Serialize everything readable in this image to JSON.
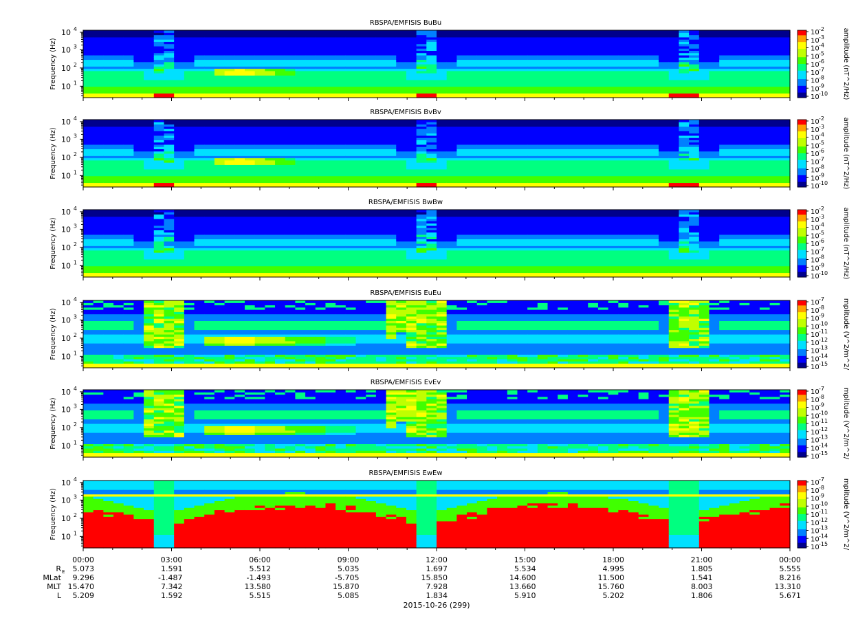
{
  "chart_data": [
    {
      "type": "heatmap",
      "title": "RBSPA/EMFISIS  BuBu",
      "ylabel": "Frequency (Hz)",
      "yscale": "log",
      "yticks": [
        "10",
        "10",
        "10",
        "10"
      ],
      "ytick_exponents": [
        "1",
        "2",
        "3",
        "4"
      ],
      "colorbar_label": "amplitude (nT^2/Hz)",
      "colorbar_ticks": [
        "-2",
        "-3",
        "-4",
        "-5",
        "-6",
        "-7",
        "-8",
        "-9",
        "-10"
      ],
      "zscale": "log",
      "zlim": [
        -10,
        -2
      ],
      "field": "magnetic"
    },
    {
      "type": "heatmap",
      "title": "RBSPA/EMFISIS  BvBv",
      "ylabel": "Frequency (Hz)",
      "yscale": "log",
      "yticks": [
        "10",
        "10",
        "10",
        "10"
      ],
      "ytick_exponents": [
        "1",
        "2",
        "3",
        "4"
      ],
      "colorbar_label": "amplitude (nT^2/Hz)",
      "colorbar_ticks": [
        "-2",
        "-3",
        "-4",
        "-5",
        "-6",
        "-7",
        "-8",
        "-9",
        "-10"
      ],
      "zscale": "log",
      "zlim": [
        -10,
        -2
      ],
      "field": "magnetic"
    },
    {
      "type": "heatmap",
      "title": "RBSPA/EMFISIS  BwBw",
      "ylabel": "Frequency (Hz)",
      "yscale": "log",
      "yticks": [
        "10",
        "10",
        "10",
        "10"
      ],
      "ytick_exponents": [
        "1",
        "2",
        "3",
        "4"
      ],
      "colorbar_label": "amplitude (nT^2/Hz)",
      "colorbar_ticks": [
        "-2",
        "-3",
        "-4",
        "-5",
        "-6",
        "-7",
        "-8",
        "-9",
        "-10"
      ],
      "zscale": "log",
      "zlim": [
        -10,
        -2
      ],
      "field": "magnetic_w"
    },
    {
      "type": "heatmap",
      "title": "RBSPA/EMFISIS  EuEu",
      "ylabel": "Frequency (Hz)",
      "yscale": "log",
      "yticks": [
        "10",
        "10",
        "10",
        "10"
      ],
      "ytick_exponents": [
        "1",
        "2",
        "3",
        "4"
      ],
      "colorbar_label": "mplitude (V^2/m^2/",
      "colorbar_ticks": [
        "-7",
        "-8",
        "-9",
        "-10",
        "-11",
        "-12",
        "-13",
        "-14",
        "-15"
      ],
      "zscale": "log",
      "zlim": [
        -15,
        -7
      ],
      "field": "electric"
    },
    {
      "type": "heatmap",
      "title": "RBSPA/EMFISIS  EvEv",
      "ylabel": "Frequency (Hz)",
      "yscale": "log",
      "yticks": [
        "10",
        "10",
        "10",
        "10"
      ],
      "ytick_exponents": [
        "1",
        "2",
        "3",
        "4"
      ],
      "colorbar_label": "mplitude (V^2/m^2/",
      "colorbar_ticks": [
        "-7",
        "-8",
        "-9",
        "-10",
        "-11",
        "-12",
        "-13",
        "-14",
        "-15"
      ],
      "zscale": "log",
      "zlim": [
        -15,
        -7
      ],
      "field": "electric"
    },
    {
      "type": "heatmap",
      "title": "RBSPA/EMFISIS  EwEw",
      "ylabel": "Frequency (Hz)",
      "yscale": "log",
      "yticks": [
        "10",
        "10",
        "10",
        "10"
      ],
      "ytick_exponents": [
        "1",
        "2",
        "3",
        "4"
      ],
      "colorbar_label": "mplitude (V^2/m^2/",
      "colorbar_ticks": [
        "-7",
        "-8",
        "-9",
        "-10",
        "-11",
        "-12",
        "-13",
        "-14",
        "-15"
      ],
      "zscale": "log",
      "zlim": [
        -15,
        -7
      ],
      "field": "electric_w"
    }
  ],
  "time_axis": {
    "ticks": [
      "00:00",
      "03:00",
      "06:00",
      "09:00",
      "12:00",
      "15:00",
      "18:00",
      "21:00",
      "00:00"
    ],
    "date_label": "2015-10-26 (299)"
  },
  "ephemeris": {
    "rows": [
      {
        "label": "R",
        "label_sub": "E",
        "values": [
          "5.073",
          "1.591",
          "5.512",
          "5.035",
          "1.697",
          "5.534",
          "4.995",
          "1.805",
          "5.555"
        ]
      },
      {
        "label": "MLat",
        "label_sub": "",
        "values": [
          "9.296",
          "-1.487",
          "-1.493",
          "-5.705",
          "15.850",
          "14.600",
          "11.500",
          "1.541",
          "8.216"
        ]
      },
      {
        "label": "MLT",
        "label_sub": "",
        "values": [
          "15.470",
          "7.342",
          "13.580",
          "15.870",
          "7.928",
          "13.660",
          "15.760",
          "8.003",
          "13.310"
        ]
      },
      {
        "label": "L",
        "label_sub": "",
        "values": [
          "5.209",
          "1.592",
          "5.515",
          "5.085",
          "1.834",
          "5.910",
          "5.202",
          "1.806",
          "5.671"
        ]
      }
    ]
  },
  "colors": {
    "background": "#ffffff",
    "axis": "#000000",
    "colormap": [
      "#00008c",
      "#0000ff",
      "#0080ff",
      "#00e0ff",
      "#00ff80",
      "#40ff00",
      "#c0ff00",
      "#ffff00",
      "#ffa000",
      "#ff0000"
    ]
  }
}
